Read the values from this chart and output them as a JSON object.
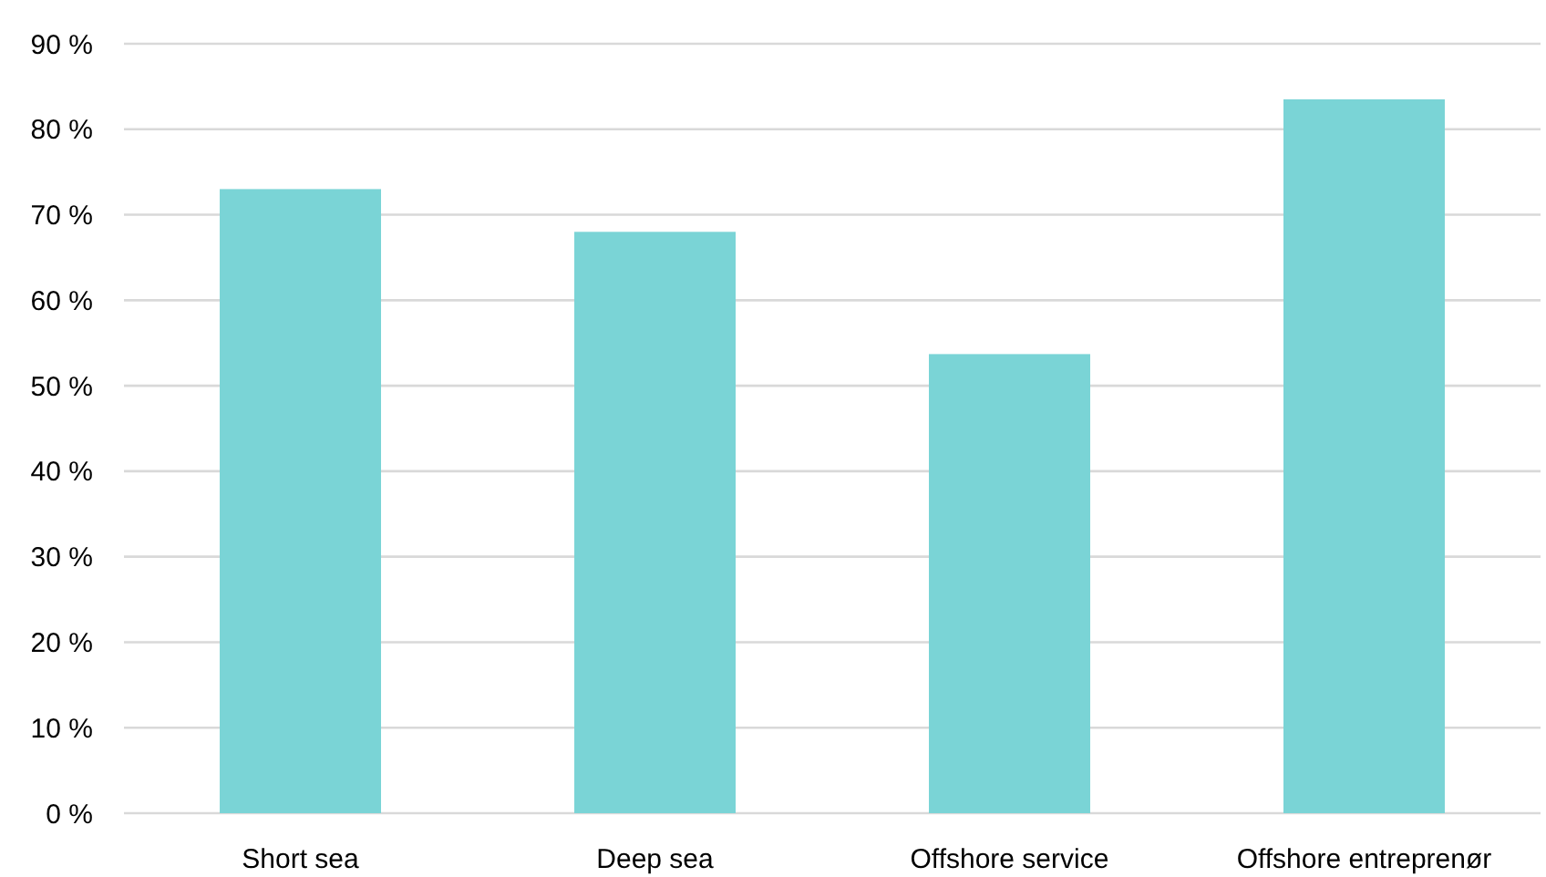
{
  "chart_data": {
    "type": "bar",
    "categories": [
      "Short sea",
      "Deep sea",
      "Offshore service",
      "Offshore entreprenør"
    ],
    "values": [
      73,
      68,
      53.7,
      83.5
    ],
    "color": "#7ad4d6",
    "ylim": [
      0,
      90
    ],
    "yticks": [
      {
        "value": 0,
        "label": "0 %"
      },
      {
        "value": 10,
        "label": "10 %"
      },
      {
        "value": 20,
        "label": "20 %"
      },
      {
        "value": 30,
        "label": "30 %"
      },
      {
        "value": 40,
        "label": "40 %"
      },
      {
        "value": 50,
        "label": "50 %"
      },
      {
        "value": 60,
        "label": "60 %"
      },
      {
        "value": 70,
        "label": "70 %"
      },
      {
        "value": 80,
        "label": "80 %"
      },
      {
        "value": 90,
        "label": "90 %"
      }
    ],
    "grid": true
  }
}
